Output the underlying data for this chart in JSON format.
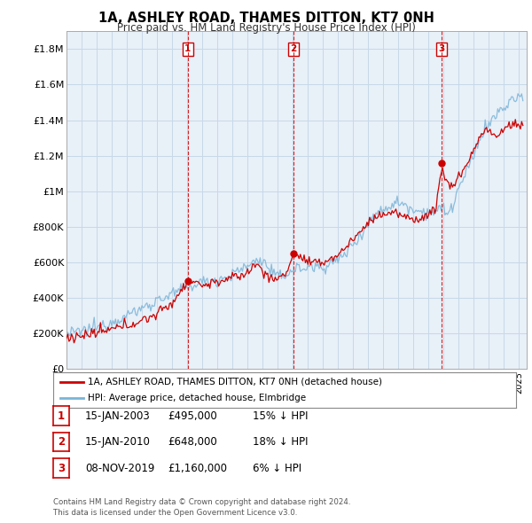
{
  "title": "1A, ASHLEY ROAD, THAMES DITTON, KT7 0NH",
  "subtitle": "Price paid vs. HM Land Registry's House Price Index (HPI)",
  "ylabel_ticks": [
    "£0",
    "£200K",
    "£400K",
    "£600K",
    "£800K",
    "£1M",
    "£1.2M",
    "£1.4M",
    "£1.6M",
    "£1.8M"
  ],
  "ytick_values": [
    0,
    200000,
    400000,
    600000,
    800000,
    1000000,
    1200000,
    1400000,
    1600000,
    1800000
  ],
  "ylim": [
    0,
    1900000
  ],
  "xlim_start": 1995.0,
  "xlim_end": 2025.5,
  "hpi_color": "#7ab4d8",
  "price_color": "#cc0000",
  "vline_color": "#cc0000",
  "grid_color": "#c8d8e8",
  "bg_color": "#e8f0f8",
  "transactions": [
    {
      "date_num": 2003.04,
      "price": 495000,
      "label": "1",
      "hpi_pct": 15
    },
    {
      "date_num": 2010.04,
      "price": 648000,
      "label": "2",
      "hpi_pct": 18
    },
    {
      "date_num": 2019.86,
      "price": 1160000,
      "label": "3",
      "hpi_pct": 6
    }
  ],
  "legend_line1": "1A, ASHLEY ROAD, THAMES DITTON, KT7 0NH (detached house)",
  "legend_line2": "HPI: Average price, detached house, Elmbridge",
  "table_rows": [
    {
      "num": "1",
      "date": "15-JAN-2003",
      "price": "£495,000",
      "pct": "15% ↓ HPI"
    },
    {
      "num": "2",
      "date": "15-JAN-2010",
      "price": "£648,000",
      "pct": "18% ↓ HPI"
    },
    {
      "num": "3",
      "date": "08-NOV-2019",
      "price": "£1,160,000",
      "pct": "6% ↓ HPI"
    }
  ],
  "footnote": "Contains HM Land Registry data © Crown copyright and database right 2024.\nThis data is licensed under the Open Government Licence v3.0."
}
